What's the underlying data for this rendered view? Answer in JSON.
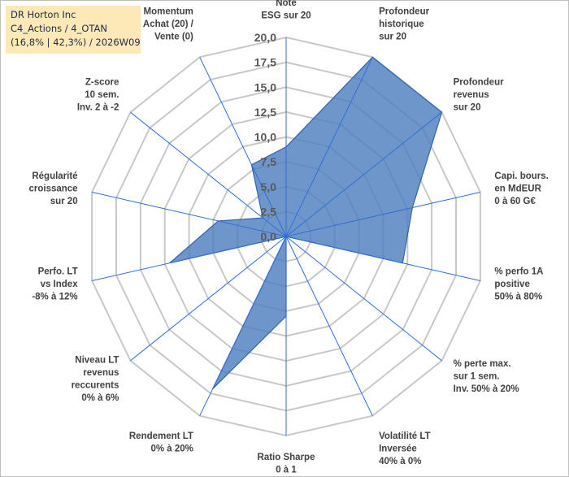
{
  "title_box": {
    "line1": "DR Horton Inc",
    "line2": "C4_Actions / 4_OTAN",
    "line3": "(16,8% | 42,3%) / 2026W09"
  },
  "colors": {
    "fill": "#4f7fbf",
    "line": "#2e64b0",
    "grid": "#c8c8c8",
    "title_bg": "#fde9b8"
  },
  "chart_data": {
    "type": "radar",
    "r_range": [
      0,
      20
    ],
    "r_ticks": [
      "0,0",
      "2,5",
      "5,0",
      "7,5",
      "10,0",
      "12,5",
      "15,0",
      "17,5",
      "20,0"
    ],
    "axes": [
      {
        "label": [
          "Note",
          "ESG sur 20"
        ],
        "value": 9
      },
      {
        "label": [
          "Profondeur",
          "historique",
          "sur 20"
        ],
        "value": 20
      },
      {
        "label": [
          "Profondeur",
          "revenus",
          "sur 20"
        ],
        "value": 20
      },
      {
        "label": [
          "Capi. bours.",
          "en MdEUR",
          "0 à 60 G€"
        ],
        "value": 13
      },
      {
        "label": [
          "% perfo 1A",
          "positive",
          "50% à 80%"
        ],
        "value": 12
      },
      {
        "label": [
          "% perte max.",
          "sur 1 sem.",
          "Inv. 50% à 20%"
        ],
        "value": 0
      },
      {
        "label": [
          "Volatilité LT",
          "Inversée",
          "40% à 0%"
        ],
        "value": 0
      },
      {
        "label": [
          "Ratio Sharpe",
          "0 à 1"
        ],
        "value": 8
      },
      {
        "label": [
          "Rendement LT",
          "0% à 20%"
        ],
        "value": 17
      },
      {
        "label": [
          "Niveau LT",
          "revenus",
          "reccurents",
          "0% à 6%"
        ],
        "value": 0
      },
      {
        "label": [
          "Perfo. LT",
          "vs Index",
          "-8% à 12%"
        ],
        "value": 12
      },
      {
        "label": [
          "Régularité",
          "croissance",
          "sur 20"
        ],
        "value": 7
      },
      {
        "label": [
          "Z-score",
          "10 sem.",
          "Inv. 2 à -2"
        ],
        "value": 3
      },
      {
        "label": [
          "Momentum",
          "Achat (20) /",
          "Vente (0)"
        ],
        "value": 8
      }
    ]
  }
}
